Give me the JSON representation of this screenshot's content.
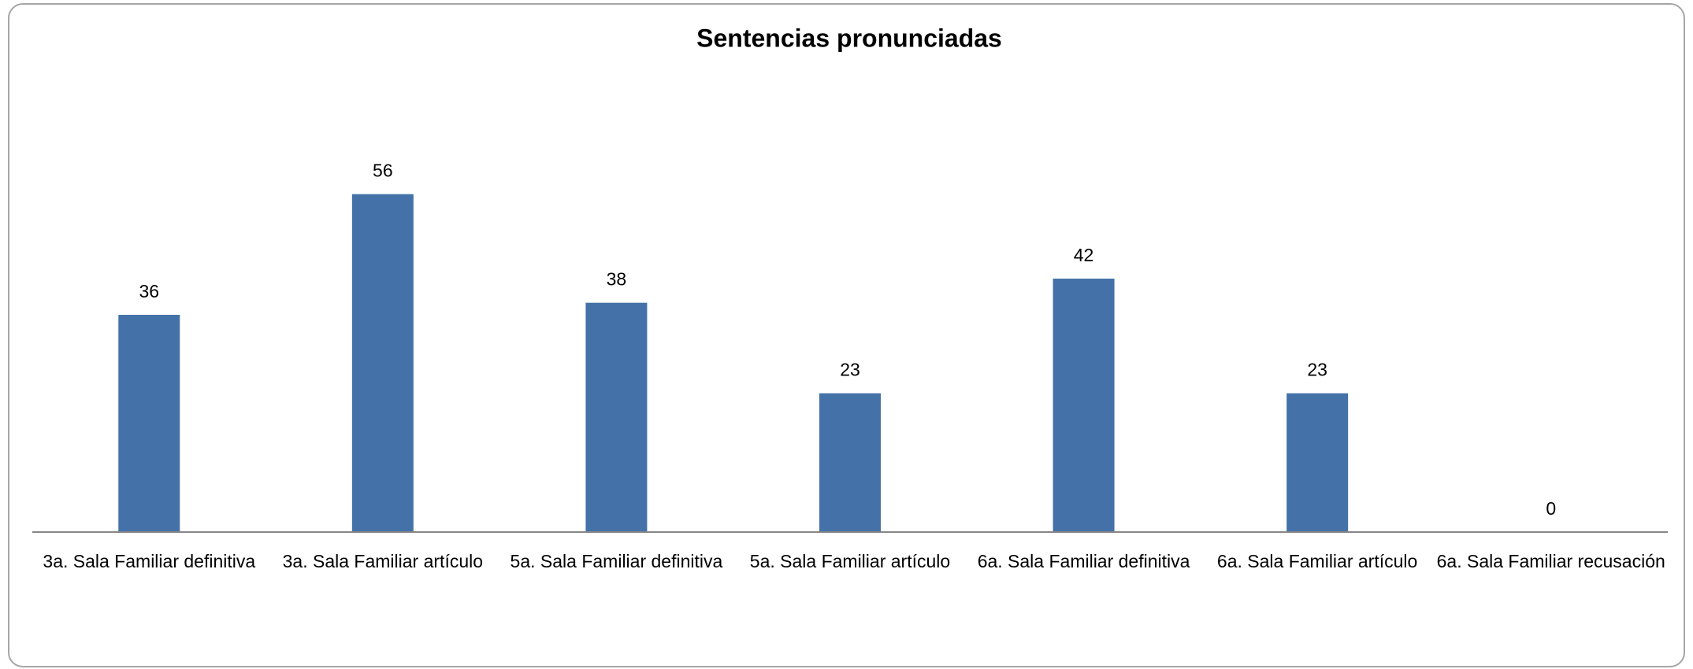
{
  "chart_data": {
    "type": "bar",
    "title": "Sentencias pronunciadas",
    "categories": [
      "3a. Sala Familiar definitiva",
      "3a. Sala Familiar artículo",
      "5a. Sala Familiar definitiva",
      "5a. Sala Familiar artículo",
      "6a. Sala Familiar definitiva",
      "6a. Sala Familiar artículo",
      "6a. Sala Familiar recusación"
    ],
    "values": [
      36,
      56,
      38,
      23,
      42,
      23,
      0
    ],
    "color": "#4472a8",
    "ylim": [
      0,
      60
    ]
  }
}
